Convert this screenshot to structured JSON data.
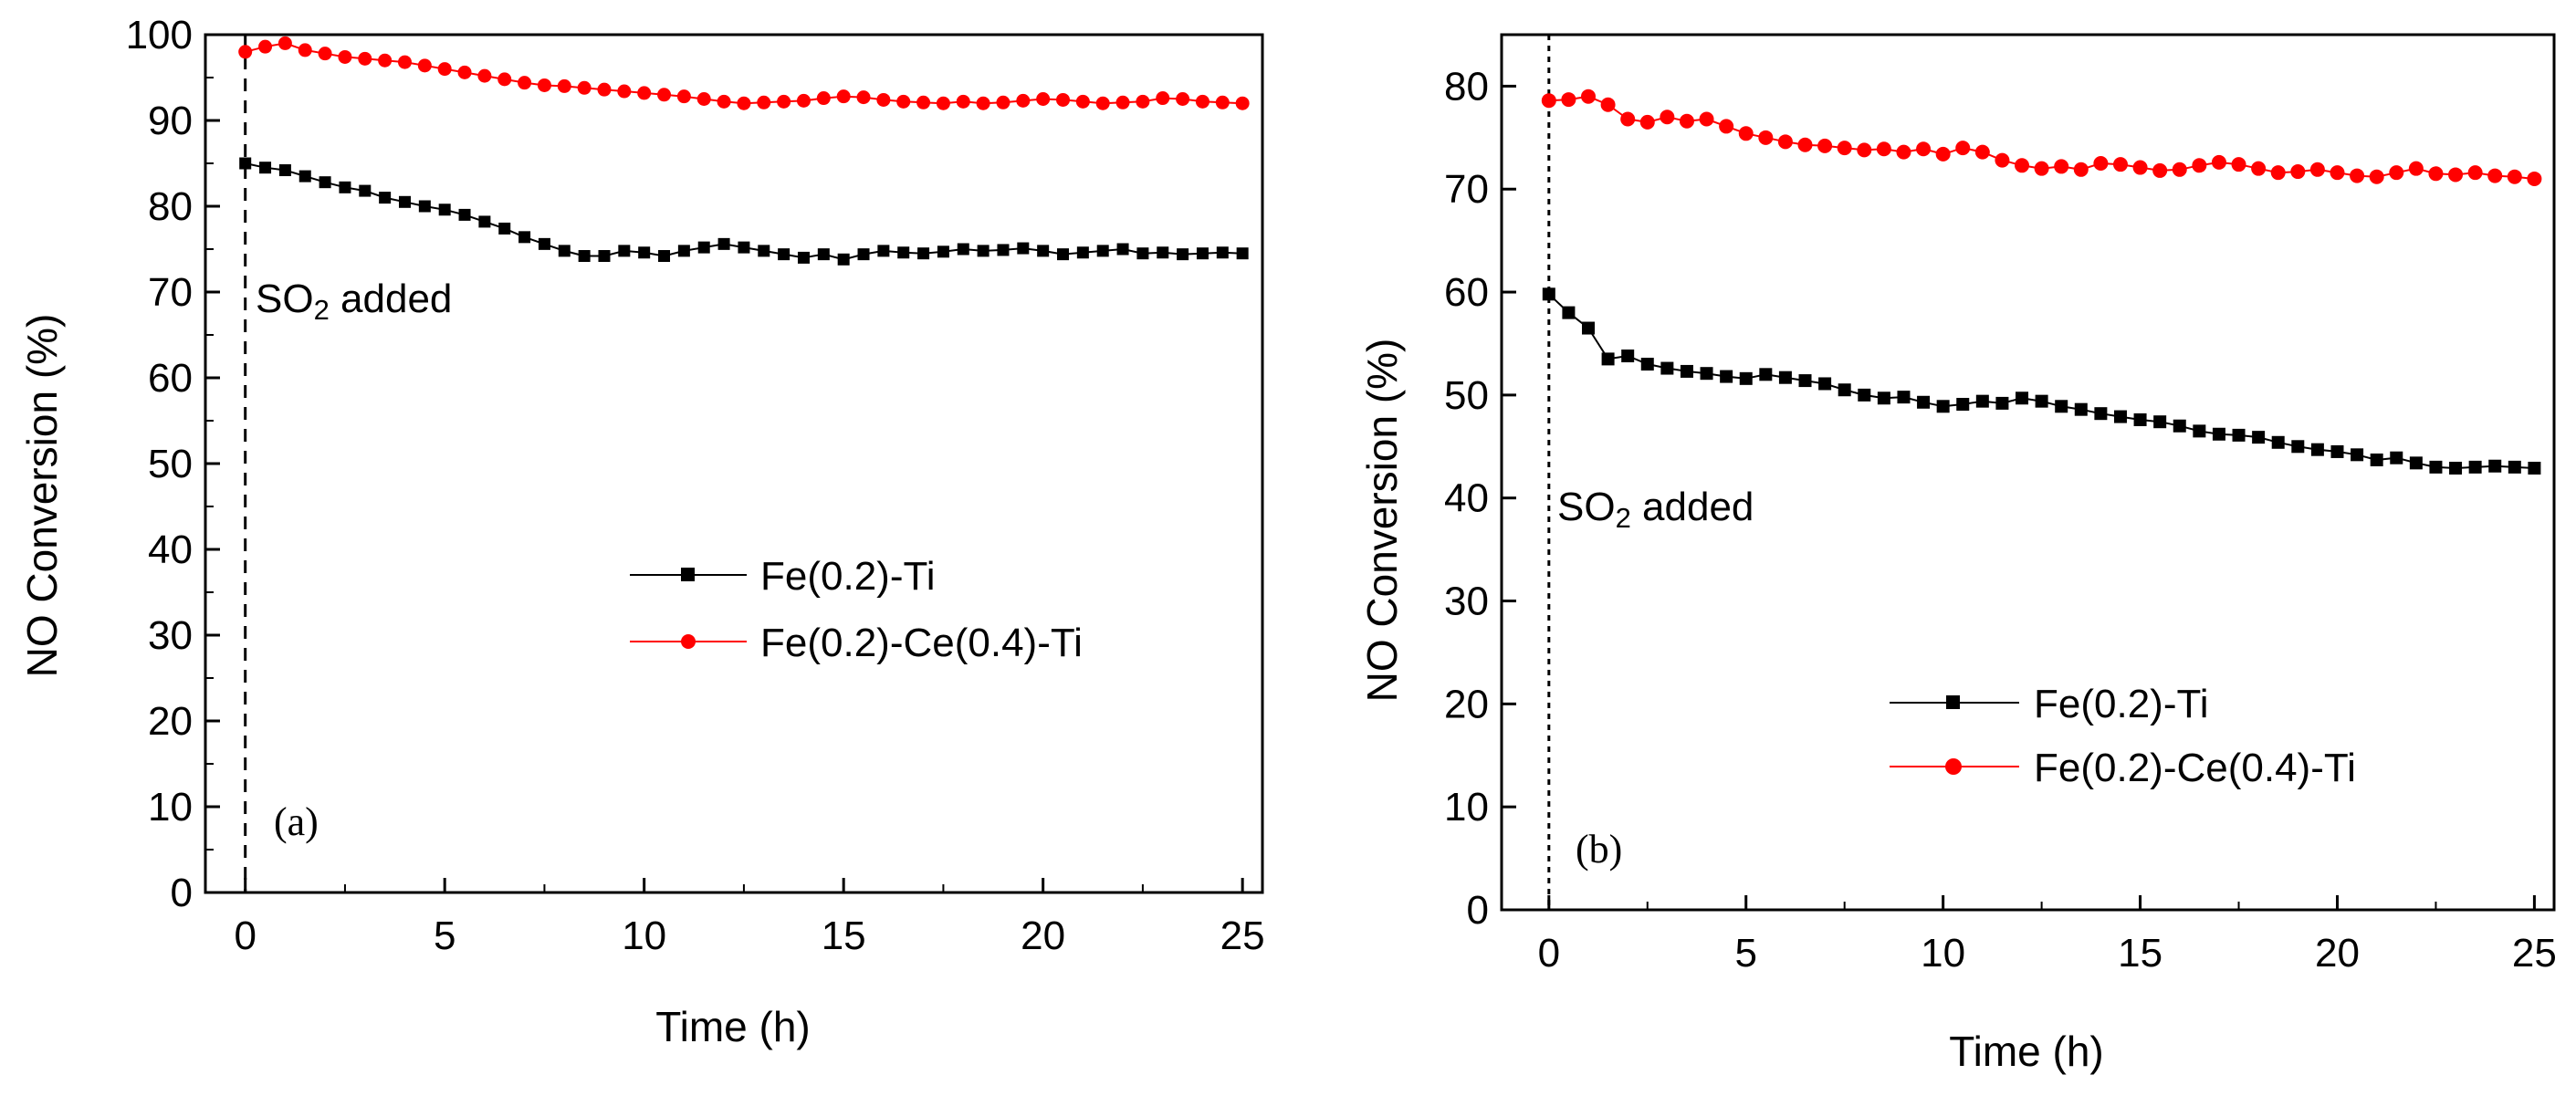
{
  "figure": {
    "annotation_main": "SO",
    "annotation_sub": "2",
    "annotation_rest": " added"
  },
  "chart_data": [
    {
      "type": "line",
      "panel_label": "(a)",
      "title": "",
      "xlabel": "Time (h)",
      "ylabel": "NO Conversion (%)",
      "xlim": [
        -1,
        25.5
      ],
      "ylim": [
        0,
        100
      ],
      "xticks": [
        0,
        5,
        10,
        15,
        20,
        25
      ],
      "yticks": [
        0,
        10,
        20,
        30,
        40,
        50,
        60,
        70,
        80,
        90,
        100
      ],
      "event_line_x": 0,
      "legend_position": "center-right",
      "series": [
        {
          "name": "Fe(0.2)-Ti",
          "color": "#000000",
          "marker": "square",
          "x": [
            0,
            0.5,
            1,
            1.5,
            2,
            2.5,
            3,
            3.5,
            4,
            4.5,
            5,
            5.5,
            6,
            6.5,
            7,
            7.5,
            8,
            8.5,
            9,
            9.5,
            10,
            10.5,
            11,
            11.5,
            12,
            12.5,
            13,
            13.5,
            14,
            14.5,
            15,
            15.5,
            16,
            16.5,
            17,
            17.5,
            18,
            18.5,
            19,
            19.5,
            20,
            20.5,
            21,
            21.5,
            22,
            22.5,
            23,
            23.5,
            24,
            24.5,
            25
          ],
          "y": [
            85,
            84.5,
            84.2,
            83.5,
            82.8,
            82.2,
            81.8,
            81.0,
            80.5,
            80.0,
            79.6,
            79.0,
            78.2,
            77.4,
            76.4,
            75.6,
            74.8,
            74.2,
            74.2,
            74.8,
            74.6,
            74.2,
            74.8,
            75.2,
            75.6,
            75.2,
            74.8,
            74.4,
            74.0,
            74.4,
            73.8,
            74.4,
            74.8,
            74.6,
            74.5,
            74.7,
            75.0,
            74.8,
            74.9,
            75.1,
            74.8,
            74.4,
            74.6,
            74.8,
            75.0,
            74.5,
            74.6,
            74.4,
            74.5,
            74.6,
            74.5
          ]
        },
        {
          "name": "Fe(0.2)-Ce(0.4)-Ti",
          "color": "#ff0000",
          "marker": "circle",
          "x": [
            0,
            0.5,
            1,
            1.5,
            2,
            2.5,
            3,
            3.5,
            4,
            4.5,
            5,
            5.5,
            6,
            6.5,
            7,
            7.5,
            8,
            8.5,
            9,
            9.5,
            10,
            10.5,
            11,
            11.5,
            12,
            12.5,
            13,
            13.5,
            14,
            14.5,
            15,
            15.5,
            16,
            16.5,
            17,
            17.5,
            18,
            18.5,
            19,
            19.5,
            20,
            20.5,
            21,
            21.5,
            22,
            22.5,
            23,
            23.5,
            24,
            24.5,
            25
          ],
          "y": [
            98.0,
            98.6,
            99.0,
            98.2,
            97.8,
            97.4,
            97.2,
            97.0,
            96.8,
            96.4,
            96.0,
            95.6,
            95.2,
            94.8,
            94.4,
            94.1,
            94.0,
            93.8,
            93.6,
            93.4,
            93.2,
            93.0,
            92.8,
            92.5,
            92.2,
            92.0,
            92.1,
            92.2,
            92.3,
            92.6,
            92.8,
            92.7,
            92.4,
            92.2,
            92.1,
            92.0,
            92.2,
            92.0,
            92.1,
            92.3,
            92.5,
            92.4,
            92.2,
            92.0,
            92.1,
            92.2,
            92.6,
            92.5,
            92.2,
            92.1,
            92.0
          ]
        }
      ]
    },
    {
      "type": "line",
      "panel_label": "(b)",
      "title": "",
      "xlabel": "Time (h)",
      "ylabel": "NO Conversion (%)",
      "xlim": [
        -1.2,
        25.5
      ],
      "ylim": [
        0,
        85
      ],
      "xticks": [
        0,
        5,
        10,
        15,
        20,
        25
      ],
      "yticks": [
        0,
        10,
        20,
        30,
        40,
        50,
        60,
        70,
        80
      ],
      "event_line_x": 0,
      "legend_position": "lower-right",
      "series": [
        {
          "name": "Fe(0.2)-Ti",
          "color": "#000000",
          "marker": "square",
          "x": [
            0,
            0.5,
            1,
            1.5,
            2,
            2.5,
            3,
            3.5,
            4,
            4.5,
            5,
            5.5,
            6,
            6.5,
            7,
            7.5,
            8,
            8.5,
            9,
            9.5,
            10,
            10.5,
            11,
            11.5,
            12,
            12.5,
            13,
            13.5,
            14,
            14.5,
            15,
            15.5,
            16,
            16.5,
            17,
            17.5,
            18,
            18.5,
            19,
            19.5,
            20,
            20.5,
            21,
            21.5,
            22,
            22.5,
            23,
            23.5,
            24,
            24.5,
            25
          ],
          "y": [
            59.8,
            58.0,
            56.5,
            53.5,
            53.8,
            53.0,
            52.6,
            52.3,
            52.1,
            51.8,
            51.6,
            52.0,
            51.7,
            51.4,
            51.1,
            50.5,
            50.0,
            49.7,
            49.8,
            49.3,
            48.9,
            49.1,
            49.4,
            49.2,
            49.7,
            49.4,
            48.9,
            48.6,
            48.2,
            47.9,
            47.6,
            47.4,
            47.0,
            46.5,
            46.2,
            46.1,
            45.9,
            45.4,
            45.0,
            44.7,
            44.5,
            44.2,
            43.7,
            43.9,
            43.4,
            43.0,
            42.9,
            43.0,
            43.1,
            43.0,
            42.9
          ]
        },
        {
          "name": "Fe(0.2)-Ce(0.4)-Ti",
          "color": "#ff0000",
          "marker": "circle",
          "x": [
            0,
            0.5,
            1,
            1.5,
            2,
            2.5,
            3,
            3.5,
            4,
            4.5,
            5,
            5.5,
            6,
            6.5,
            7,
            7.5,
            8,
            8.5,
            9,
            9.5,
            10,
            10.5,
            11,
            11.5,
            12,
            12.5,
            13,
            13.5,
            14,
            14.5,
            15,
            15.5,
            16,
            16.5,
            17,
            17.5,
            18,
            18.5,
            19,
            19.5,
            20,
            20.5,
            21,
            21.5,
            22,
            22.5,
            23,
            23.5,
            24,
            24.5,
            25
          ],
          "y": [
            78.6,
            78.7,
            79.0,
            78.2,
            76.8,
            76.5,
            77.0,
            76.6,
            76.8,
            76.1,
            75.4,
            75.0,
            74.6,
            74.3,
            74.2,
            74.0,
            73.8,
            73.9,
            73.6,
            73.9,
            73.4,
            74.0,
            73.6,
            72.8,
            72.3,
            72.0,
            72.2,
            71.9,
            72.5,
            72.4,
            72.1,
            71.8,
            71.9,
            72.3,
            72.6,
            72.4,
            72.0,
            71.6,
            71.7,
            71.9,
            71.6,
            71.3,
            71.2,
            71.6,
            72.0,
            71.5,
            71.4,
            71.6,
            71.3,
            71.2,
            71.0
          ]
        }
      ]
    }
  ]
}
